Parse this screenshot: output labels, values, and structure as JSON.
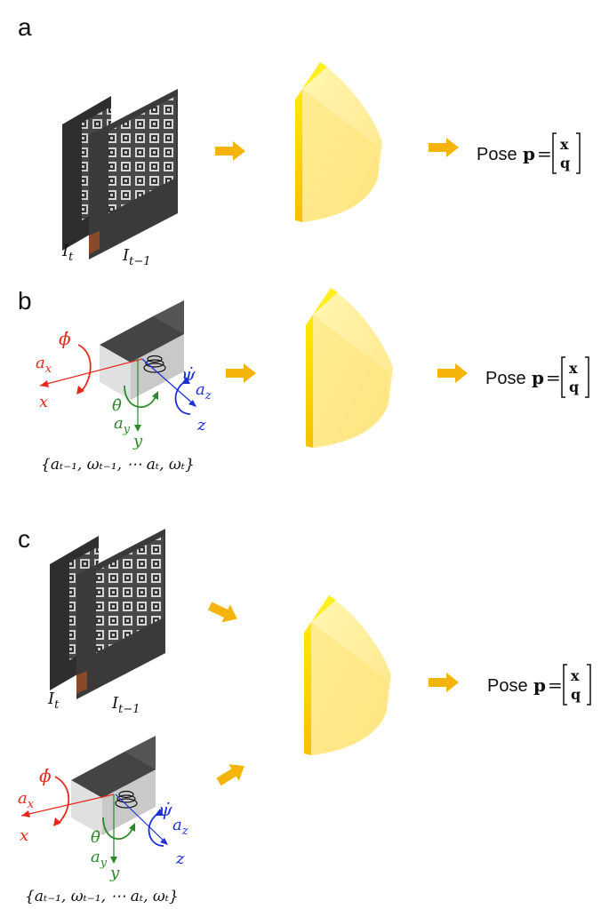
{
  "panels": [
    {
      "letter": "a",
      "image_labels": [
        "I",
        "t",
        "I",
        "t−1"
      ],
      "pose_label": "Pose",
      "pose_symbol": "p",
      "pose_equals": "=",
      "pose_top": "x",
      "pose_bottom": "q"
    },
    {
      "letter": "b",
      "imu_labels": {
        "phi_dot": "ϕ̇",
        "a_x": "a",
        "a_x_sub": "x",
        "x_axis": "x",
        "theta_dot": "θ̇",
        "a_y": "a",
        "a_y_sub": "y",
        "y_axis": "y",
        "psi_dot": "ψ̇",
        "a_z": "a",
        "a_z_sub": "z",
        "z_axis": "z"
      },
      "imu_sequence": "{aₜ₋₁, ωₜ₋₁, ⋯ aₜ, ωₜ}",
      "pose_label": "Pose",
      "pose_symbol": "p",
      "pose_equals": "=",
      "pose_top": "x",
      "pose_bottom": "q"
    },
    {
      "letter": "c",
      "image_labels": [
        "I",
        "t",
        "I",
        "t−1"
      ],
      "imu_labels": {
        "phi_dot": "ϕ̇",
        "a_x": "a",
        "a_x_sub": "x",
        "x_axis": "x",
        "theta_dot": "θ̇",
        "a_y": "a",
        "a_y_sub": "y",
        "y_axis": "y",
        "psi_dot": "ψ̇",
        "a_z": "a",
        "a_z_sub": "z",
        "z_axis": "z"
      },
      "imu_sequence": "{aₜ₋₁, ωₜ₋₁, ⋯ aₜ, ωₜ}",
      "pose_label": "Pose",
      "pose_symbol": "p",
      "pose_equals": "=",
      "pose_top": "x",
      "pose_bottom": "q"
    }
  ],
  "colors": {
    "arrow": "#f5b40a",
    "network_front": "#f7c600",
    "network_body": "#fff39a",
    "red_axis": "#e8281c",
    "green_axis": "#2a8a2a",
    "blue_axis": "#1c2fd6"
  }
}
